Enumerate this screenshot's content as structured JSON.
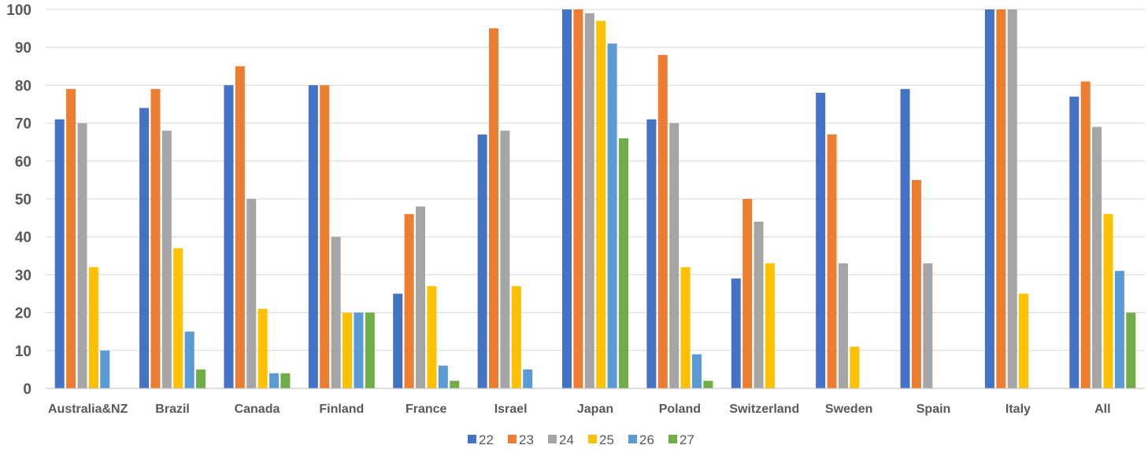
{
  "chart_data": {
    "type": "bar",
    "title": "",
    "xlabel": "",
    "ylabel": "",
    "ylim": [
      0,
      100
    ],
    "yticks": [
      0,
      10,
      20,
      30,
      40,
      50,
      60,
      70,
      80,
      90,
      100
    ],
    "grid": true,
    "legend_position": "bottom",
    "categories": [
      "Australia&NZ",
      "Brazil",
      "Canada",
      "Finland",
      "France",
      "Israel",
      "Japan",
      "Poland",
      "Switzerland",
      "Sweden",
      "Spain",
      "Italy",
      "All"
    ],
    "series": [
      {
        "name": "22",
        "color": "#4472C4",
        "values": [
          71,
          74,
          80,
          80,
          25,
          67,
          100,
          71,
          29,
          78,
          79,
          100,
          77
        ]
      },
      {
        "name": "23",
        "color": "#ED7D31",
        "values": [
          79,
          79,
          85,
          80,
          46,
          95,
          100,
          88,
          50,
          67,
          55,
          100,
          81
        ]
      },
      {
        "name": "24",
        "color": "#A5A5A5",
        "values": [
          70,
          68,
          50,
          40,
          48,
          68,
          99,
          70,
          44,
          33,
          33,
          100,
          69
        ]
      },
      {
        "name": "25",
        "color": "#FFC000",
        "values": [
          32,
          37,
          21,
          20,
          27,
          27,
          97,
          32,
          33,
          11,
          null,
          25,
          46
        ]
      },
      {
        "name": "26",
        "color": "#5B9BD5",
        "values": [
          10,
          15,
          4,
          20,
          6,
          5,
          91,
          9,
          null,
          null,
          null,
          null,
          31
        ]
      },
      {
        "name": "27",
        "color": "#70AD47",
        "values": [
          null,
          5,
          4,
          20,
          2,
          null,
          66,
          2,
          null,
          null,
          null,
          null,
          20
        ]
      }
    ]
  }
}
